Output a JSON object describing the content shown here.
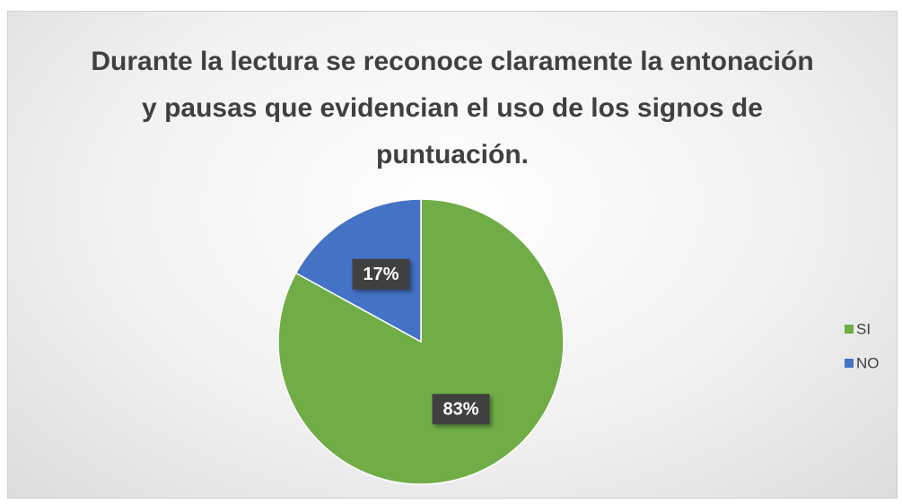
{
  "chart_data": {
    "type": "pie",
    "title": "Durante la lectura se reconoce claramente la entonación y pausas que evidencian el uso de los signos de puntuación.",
    "categories": [
      "SI",
      "NO"
    ],
    "values": [
      83,
      17
    ],
    "value_labels": [
      "83%",
      "17%"
    ],
    "colors": [
      "#70ad47",
      "#4472c4"
    ],
    "legend": "right"
  }
}
